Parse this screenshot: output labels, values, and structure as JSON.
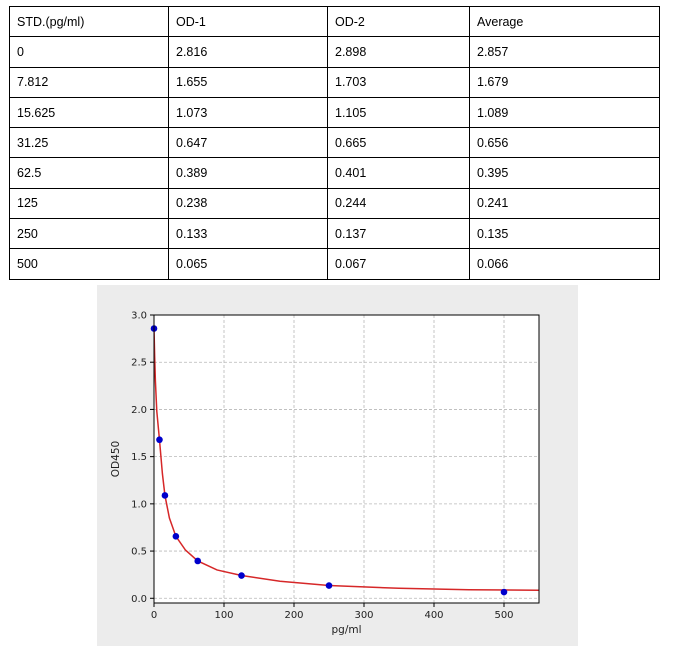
{
  "table": {
    "header": [
      "STD.(pg/ml)",
      "OD-1",
      "OD-2",
      "Average"
    ],
    "rows": [
      [
        "0",
        "2.816",
        "2.898",
        "2.857"
      ],
      [
        "7.812",
        "1.655",
        "1.703",
        "1.679"
      ],
      [
        "15.625",
        "1.073",
        "1.105",
        "1.089"
      ],
      [
        "31.25",
        "0.647",
        "0.665",
        "0.656"
      ],
      [
        "62.5",
        "0.389",
        "0.401",
        "0.395"
      ],
      [
        "125",
        "0.238",
        "0.244",
        "0.241"
      ],
      [
        "250",
        "0.133",
        "0.137",
        "0.135"
      ],
      [
        "500",
        "0.065",
        "0.067",
        "0.066"
      ]
    ]
  },
  "chart_data": {
    "type": "scatter",
    "title": "",
    "xlabel": "pg/ml",
    "ylabel": "OD450",
    "xlim": [
      0,
      550
    ],
    "ylim": [
      -0.05,
      3.0
    ],
    "xticks": [
      0,
      100,
      200,
      300,
      400,
      500
    ],
    "yticks": [
      0.0,
      0.5,
      1.0,
      1.5,
      2.0,
      2.5,
      3.0
    ],
    "grid": true,
    "series": [
      {
        "kind": "points",
        "color": "#0000cc",
        "x": [
          0,
          7.812,
          15.625,
          31.25,
          62.5,
          125,
          250,
          500
        ],
        "y": [
          2.857,
          1.679,
          1.089,
          0.656,
          0.395,
          0.241,
          0.135,
          0.066
        ]
      },
      {
        "kind": "fit-curve",
        "color": "#d62728",
        "x": [
          0,
          1,
          2,
          4,
          7.812,
          12,
          15.625,
          22,
          31.25,
          45,
          62.5,
          90,
          125,
          180,
          250,
          350,
          450,
          550
        ],
        "y": [
          2.857,
          2.55,
          2.3,
          1.98,
          1.679,
          1.32,
          1.089,
          0.85,
          0.656,
          0.51,
          0.395,
          0.3,
          0.241,
          0.18,
          0.135,
          0.106,
          0.09,
          0.085
        ]
      }
    ]
  }
}
